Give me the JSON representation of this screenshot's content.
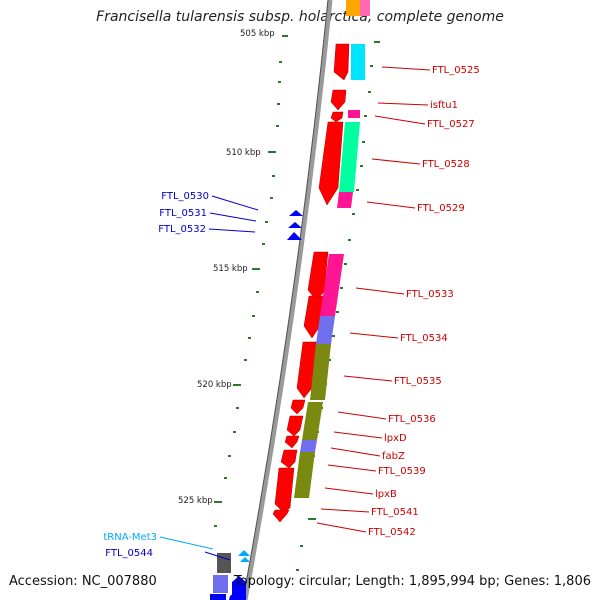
{
  "title": "Francisella tularensis subsp. holarctica, complete genome",
  "accession": "Accession: NC_007880",
  "topology": "Topology: circular; Length: 1,895,994 bp; Genes: 1,806",
  "colors": {
    "red_gene": "#ff0000",
    "blue_gene": "#0000ff",
    "cyan_label": "#00aaff",
    "label_red": "#cc0000",
    "label_blue": "#0000cc",
    "backbone": "#888888",
    "tick": "#1a7a1a",
    "cyan_cog": "#00e5ff",
    "magenta_cog": "#ff1493",
    "green_cog": "#00ff99",
    "olive_cog": "#7a8a10",
    "slate_cog": "#7070ff",
    "gray_cog": "#555555"
  },
  "scale_labels": [
    "505 kbp",
    "510 kbp",
    "515 kbp",
    "520 kbp",
    "525 kbp"
  ],
  "genes_right": [
    "FTL_0525",
    "isftu1",
    "FTL_0527",
    "FTL_0528",
    "FTL_0529",
    "FTL_0533",
    "FTL_0534",
    "FTL_0535",
    "FTL_0536",
    "lpxD",
    "fabZ",
    "FTL_0539",
    "lpxB",
    "FTL_0541",
    "FTL_0542"
  ],
  "genes_left": [
    "FTL_0530",
    "FTL_0531",
    "FTL_0532",
    "tRNA-Met3",
    "FTL_0544"
  ]
}
